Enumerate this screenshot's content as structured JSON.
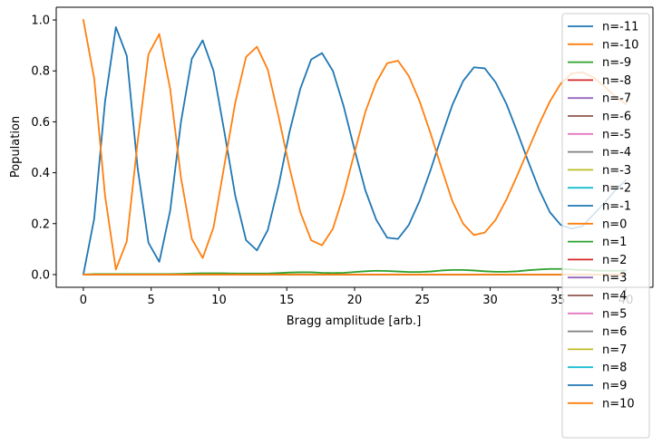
{
  "chart_data": {
    "type": "line",
    "xlabel": "Bragg amplitude [arb.]",
    "ylabel": "Population",
    "xlim": [
      -2,
      42
    ],
    "ylim": [
      -0.05,
      1.05
    ],
    "x_ticks": [
      0,
      5,
      10,
      15,
      20,
      25,
      30,
      35,
      40
    ],
    "y_ticks": [
      0.0,
      0.2,
      0.4,
      0.6,
      0.8,
      1.0
    ],
    "x_tick_labels": [
      "0",
      "5",
      "10",
      "15",
      "20",
      "25",
      "30",
      "35",
      "40"
    ],
    "y_tick_labels": [
      "0.0",
      "0.2",
      "0.4",
      "0.6",
      "0.8",
      "1.0"
    ],
    "grid": false,
    "legend_position": "right",
    "x": [
      0.0,
      0.8,
      1.6,
      2.4,
      3.2,
      4.0,
      4.8,
      5.6,
      6.4,
      7.2,
      8.0,
      8.8,
      9.6,
      10.4,
      11.2,
      12.0,
      12.8,
      13.6,
      14.4,
      15.2,
      16.0,
      16.8,
      17.6,
      18.4,
      19.2,
      20.0,
      20.8,
      21.6,
      22.4,
      23.2,
      24.0,
      24.8,
      25.6,
      26.4,
      27.2,
      28.0,
      28.8,
      29.6,
      30.4,
      31.2,
      32.0,
      32.8,
      33.6,
      34.4,
      35.2,
      36.0,
      36.8,
      37.6,
      38.4,
      39.2,
      40.0
    ],
    "series": [
      {
        "name": "n=-11",
        "color": "#1f77b4",
        "values": [
          0,
          0,
          0,
          0,
          0,
          0,
          0,
          0,
          0,
          0,
          0,
          0,
          0,
          0,
          0,
          0,
          0,
          0,
          0,
          0,
          0,
          0,
          0,
          0,
          0,
          0,
          0,
          0,
          0,
          0,
          0,
          0,
          0,
          0,
          0,
          0,
          0,
          0,
          0,
          0,
          0,
          0,
          0,
          0,
          0,
          0,
          0,
          0,
          0,
          0,
          0
        ]
      },
      {
        "name": "n=-10",
        "color": "#ff7f0e",
        "values": [
          0,
          0,
          0,
          0,
          0,
          0,
          0,
          0,
          0,
          0,
          0,
          0,
          0,
          0,
          0,
          0,
          0,
          0,
          0,
          0,
          0,
          0,
          0,
          0,
          0,
          0,
          0,
          0,
          0,
          0,
          0,
          0,
          0,
          0,
          0,
          0,
          0,
          0,
          0,
          0,
          0,
          0,
          0,
          0,
          0,
          0,
          0,
          0,
          0,
          0,
          0
        ]
      },
      {
        "name": "n=-9",
        "color": "#2ca02c",
        "values": [
          0,
          0,
          0,
          0,
          0,
          0,
          0,
          0,
          0,
          0,
          0,
          0,
          0,
          0,
          0,
          0,
          0,
          0,
          0,
          0,
          0,
          0,
          0,
          0,
          0,
          0,
          0,
          0,
          0,
          0,
          0,
          0,
          0,
          0,
          0,
          0,
          0,
          0,
          0,
          0,
          0,
          0,
          0,
          0,
          0,
          0,
          0,
          0,
          0,
          0,
          0
        ]
      },
      {
        "name": "n=-8",
        "color": "#d62728",
        "values": [
          0,
          0,
          0,
          0,
          0,
          0,
          0,
          0,
          0,
          0,
          0,
          0,
          0,
          0,
          0,
          0,
          0,
          0,
          0,
          0,
          0,
          0,
          0,
          0,
          0,
          0,
          0,
          0,
          0,
          0,
          0,
          0,
          0,
          0,
          0,
          0,
          0,
          0,
          0,
          0,
          0,
          0,
          0,
          0,
          0,
          0,
          0,
          0,
          0,
          0,
          0
        ]
      },
      {
        "name": "n=-7",
        "color": "#9467bd",
        "values": [
          0,
          0,
          0,
          0,
          0,
          0,
          0,
          0,
          0,
          0,
          0,
          0,
          0,
          0,
          0,
          0,
          0,
          0,
          0,
          0,
          0,
          0,
          0,
          0,
          0,
          0,
          0,
          0,
          0,
          0,
          0,
          0,
          0,
          0,
          0,
          0,
          0,
          0,
          0,
          0,
          0,
          0,
          0,
          0,
          0,
          0,
          0,
          0,
          0,
          0,
          0
        ]
      },
      {
        "name": "n=-6",
        "color": "#8c564b",
        "values": [
          0,
          0,
          0,
          0,
          0,
          0,
          0,
          0,
          0,
          0,
          0,
          0,
          0,
          0,
          0,
          0,
          0,
          0,
          0,
          0,
          0,
          0,
          0,
          0,
          0,
          0,
          0,
          0,
          0,
          0,
          0,
          0,
          0,
          0,
          0,
          0,
          0,
          0,
          0,
          0,
          0,
          0,
          0,
          0,
          0,
          0,
          0,
          0,
          0,
          0,
          0
        ]
      },
      {
        "name": "n=-5",
        "color": "#e377c2",
        "values": [
          0,
          0,
          0,
          0,
          0,
          0,
          0,
          0,
          0,
          0,
          0,
          0,
          0,
          0,
          0,
          0,
          0,
          0,
          0,
          0,
          0,
          0,
          0,
          0,
          0,
          0,
          0,
          0,
          0,
          0,
          0,
          0,
          0,
          0,
          0,
          0,
          0,
          0,
          0,
          0,
          0,
          0,
          0,
          0,
          0,
          0,
          0,
          0,
          0,
          0,
          0
        ]
      },
      {
        "name": "n=-4",
        "color": "#7f7f7f",
        "values": [
          0,
          0,
          0,
          0,
          0,
          0,
          0,
          0,
          0,
          0,
          0,
          0,
          0,
          0,
          0,
          0,
          0,
          0,
          0,
          0,
          0,
          0,
          0,
          0,
          0,
          0,
          0,
          0,
          0,
          0,
          0,
          0,
          0,
          0,
          0,
          0,
          0,
          0,
          0,
          0,
          0,
          0,
          0,
          0,
          0,
          0,
          0,
          0,
          0,
          0,
          0
        ]
      },
      {
        "name": "n=-3",
        "color": "#bcbd22",
        "values": [
          0,
          0,
          0,
          0,
          0,
          0,
          0,
          0,
          0,
          0,
          0,
          0,
          0,
          0,
          0,
          0,
          0,
          0,
          0,
          0,
          0,
          0,
          0,
          0,
          0,
          0,
          0,
          0,
          0,
          0,
          0,
          0,
          0,
          0,
          0,
          0,
          0,
          0,
          0,
          0,
          0,
          0,
          0,
          0,
          0,
          0,
          0,
          0,
          0,
          0,
          0
        ]
      },
      {
        "name": "n=-2",
        "color": "#17becf",
        "values": [
          0,
          0,
          0,
          0,
          0,
          0,
          0,
          0,
          0,
          0,
          0,
          0,
          0,
          0,
          0,
          0,
          0,
          0,
          0,
          0,
          0,
          0,
          0,
          0,
          0,
          0,
          0,
          0,
          0,
          0,
          0,
          0,
          0,
          0,
          0,
          0,
          0,
          0,
          0,
          0,
          0,
          0,
          0,
          0,
          0,
          0,
          0,
          0,
          0,
          0,
          0
        ]
      },
      {
        "name": "n=-1",
        "color": "#1f77b4",
        "values": [
          0.0,
          0.22,
          0.68,
          0.972,
          0.86,
          0.42,
          0.125,
          0.05,
          0.25,
          0.6,
          0.848,
          0.92,
          0.8,
          0.56,
          0.31,
          0.135,
          0.095,
          0.175,
          0.35,
          0.56,
          0.73,
          0.845,
          0.87,
          0.8,
          0.66,
          0.49,
          0.33,
          0.215,
          0.145,
          0.14,
          0.195,
          0.29,
          0.41,
          0.54,
          0.665,
          0.76,
          0.814,
          0.81,
          0.755,
          0.67,
          0.56,
          0.445,
          0.335,
          0.245,
          0.195,
          0.18,
          0.19,
          0.235,
          0.28,
          0.33,
          0.37
        ]
      },
      {
        "name": "n=0",
        "color": "#ff7f0e",
        "values": [
          1.0,
          0.77,
          0.31,
          0.02,
          0.13,
          0.52,
          0.865,
          0.945,
          0.73,
          0.38,
          0.14,
          0.065,
          0.185,
          0.43,
          0.675,
          0.855,
          0.895,
          0.805,
          0.62,
          0.42,
          0.245,
          0.135,
          0.115,
          0.18,
          0.315,
          0.48,
          0.64,
          0.755,
          0.83,
          0.84,
          0.78,
          0.68,
          0.555,
          0.42,
          0.29,
          0.2,
          0.155,
          0.165,
          0.215,
          0.295,
          0.39,
          0.49,
          0.59,
          0.68,
          0.75,
          0.79,
          0.795,
          0.775,
          0.74,
          0.7,
          0.67
        ]
      },
      {
        "name": "n=1",
        "color": "#2ca02c",
        "values": [
          0.0,
          0.002,
          0.002,
          0.002,
          0.002,
          0.002,
          0.002,
          0.002,
          0.002,
          0.003,
          0.004,
          0.005,
          0.005,
          0.005,
          0.004,
          0.004,
          0.004,
          0.004,
          0.006,
          0.008,
          0.009,
          0.009,
          0.007,
          0.006,
          0.007,
          0.01,
          0.013,
          0.015,
          0.014,
          0.012,
          0.01,
          0.01,
          0.012,
          0.016,
          0.018,
          0.018,
          0.016,
          0.013,
          0.011,
          0.011,
          0.013,
          0.017,
          0.02,
          0.022,
          0.022,
          0.02,
          0.018,
          0.016,
          0.015,
          0.015,
          0.016
        ]
      },
      {
        "name": "n=2",
        "color": "#d62728",
        "values": [
          0,
          0,
          0,
          0,
          0,
          0,
          0,
          0,
          0,
          0,
          0,
          0,
          0,
          0,
          0,
          0,
          0,
          0,
          0,
          0,
          0,
          0,
          0,
          0,
          0,
          0,
          0,
          0,
          0,
          0,
          0,
          0,
          0,
          0,
          0,
          0,
          0,
          0,
          0,
          0,
          0,
          0,
          0,
          0,
          0,
          0,
          0,
          0,
          0,
          0,
          0
        ]
      },
      {
        "name": "n=3",
        "color": "#9467bd",
        "values": [
          0,
          0,
          0,
          0,
          0,
          0,
          0,
          0,
          0,
          0,
          0,
          0,
          0,
          0,
          0,
          0,
          0,
          0,
          0,
          0,
          0,
          0,
          0,
          0,
          0,
          0,
          0,
          0,
          0,
          0,
          0,
          0,
          0,
          0,
          0,
          0,
          0,
          0,
          0,
          0,
          0,
          0,
          0,
          0,
          0,
          0,
          0,
          0,
          0,
          0,
          0
        ]
      },
      {
        "name": "n=4",
        "color": "#8c564b",
        "values": [
          0,
          0,
          0,
          0,
          0,
          0,
          0,
          0,
          0,
          0,
          0,
          0,
          0,
          0,
          0,
          0,
          0,
          0,
          0,
          0,
          0,
          0,
          0,
          0,
          0,
          0,
          0,
          0,
          0,
          0,
          0,
          0,
          0,
          0,
          0,
          0,
          0,
          0,
          0,
          0,
          0,
          0,
          0,
          0,
          0,
          0,
          0,
          0,
          0,
          0,
          0
        ]
      },
      {
        "name": "n=5",
        "color": "#e377c2",
        "values": [
          0,
          0,
          0,
          0,
          0,
          0,
          0,
          0,
          0,
          0,
          0,
          0,
          0,
          0,
          0,
          0,
          0,
          0,
          0,
          0,
          0,
          0,
          0,
          0,
          0,
          0,
          0,
          0,
          0,
          0,
          0,
          0,
          0,
          0,
          0,
          0,
          0,
          0,
          0,
          0,
          0,
          0,
          0,
          0,
          0,
          0,
          0,
          0,
          0,
          0,
          0
        ]
      },
      {
        "name": "n=6",
        "color": "#7f7f7f",
        "values": [
          0,
          0,
          0,
          0,
          0,
          0,
          0,
          0,
          0,
          0,
          0,
          0,
          0,
          0,
          0,
          0,
          0,
          0,
          0,
          0,
          0,
          0,
          0,
          0,
          0,
          0,
          0,
          0,
          0,
          0,
          0,
          0,
          0,
          0,
          0,
          0,
          0,
          0,
          0,
          0,
          0,
          0,
          0,
          0,
          0,
          0,
          0,
          0,
          0,
          0,
          0
        ]
      },
      {
        "name": "n=7",
        "color": "#bcbd22",
        "values": [
          0,
          0,
          0,
          0,
          0,
          0,
          0,
          0,
          0,
          0,
          0,
          0,
          0,
          0,
          0,
          0,
          0,
          0,
          0,
          0,
          0,
          0,
          0,
          0,
          0,
          0,
          0,
          0,
          0,
          0,
          0,
          0,
          0,
          0,
          0,
          0,
          0,
          0,
          0,
          0,
          0,
          0,
          0,
          0,
          0,
          0,
          0,
          0,
          0,
          0,
          0
        ]
      },
      {
        "name": "n=8",
        "color": "#17becf",
        "values": [
          0,
          0,
          0,
          0,
          0,
          0,
          0,
          0,
          0,
          0,
          0,
          0,
          0,
          0,
          0,
          0,
          0,
          0,
          0,
          0,
          0,
          0,
          0,
          0,
          0,
          0,
          0,
          0,
          0,
          0,
          0,
          0,
          0,
          0,
          0,
          0,
          0,
          0,
          0,
          0,
          0,
          0,
          0,
          0,
          0,
          0,
          0,
          0,
          0,
          0,
          0
        ]
      },
      {
        "name": "n=9",
        "color": "#1f77b4",
        "values": [
          0,
          0,
          0,
          0,
          0,
          0,
          0,
          0,
          0,
          0,
          0,
          0,
          0,
          0,
          0,
          0,
          0,
          0,
          0,
          0,
          0,
          0,
          0,
          0,
          0,
          0,
          0,
          0,
          0,
          0,
          0,
          0,
          0,
          0,
          0,
          0,
          0,
          0,
          0,
          0,
          0,
          0,
          0,
          0,
          0,
          0,
          0,
          0,
          0,
          0,
          0
        ]
      },
      {
        "name": "n=10",
        "color": "#ff7f0e",
        "values": [
          0,
          0,
          0,
          0,
          0,
          0,
          0,
          0,
          0,
          0,
          0,
          0,
          0,
          0,
          0,
          0,
          0,
          0,
          0,
          0,
          0,
          0,
          0,
          0,
          0,
          0,
          0,
          0,
          0,
          0,
          0,
          0,
          0,
          0,
          0,
          0,
          0,
          0,
          0,
          0,
          0,
          0,
          0,
          0,
          0,
          0,
          0,
          0,
          0,
          0,
          0
        ]
      }
    ]
  }
}
